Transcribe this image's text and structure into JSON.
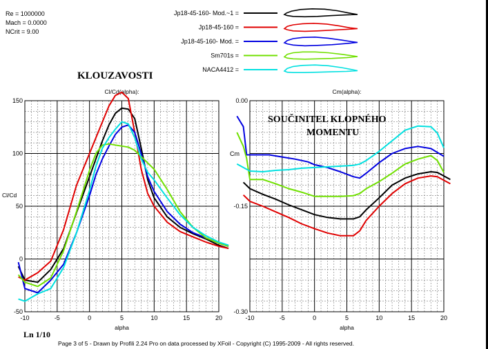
{
  "params": {
    "re": "Re = 1000000",
    "mach": "Mach = 0.0000",
    "ncrit": "NCrit = 9.00"
  },
  "legend": [
    {
      "name": "Jp18-45-160- Mod.~1 =",
      "color": "#000000",
      "profile": [
        [
          0.0,
          0.0
        ],
        [
          0.03,
          -0.04
        ],
        [
          0.1,
          -0.09
        ],
        [
          0.22,
          -0.13
        ],
        [
          0.38,
          -0.15
        ],
        [
          0.55,
          -0.14
        ],
        [
          0.72,
          -0.1
        ],
        [
          0.88,
          -0.04
        ],
        [
          1.0,
          0.0
        ],
        [
          0.85,
          0.01
        ],
        [
          0.65,
          0.03
        ],
        [
          0.45,
          0.05
        ],
        [
          0.28,
          0.06
        ],
        [
          0.12,
          0.05
        ],
        [
          0.04,
          0.03
        ],
        [
          0.0,
          0.0
        ]
      ]
    },
    {
      "name": "Jp18-45-160 =",
      "color": "#e00000",
      "profile": [
        [
          0.0,
          0.0
        ],
        [
          0.04,
          -0.06
        ],
        [
          0.12,
          -0.1
        ],
        [
          0.25,
          -0.13
        ],
        [
          0.4,
          -0.14
        ],
        [
          0.58,
          -0.12
        ],
        [
          0.75,
          -0.07
        ],
        [
          0.9,
          -0.02
        ],
        [
          1.0,
          0.0
        ],
        [
          0.85,
          0.02
        ],
        [
          0.65,
          0.04
        ],
        [
          0.45,
          0.06
        ],
        [
          0.28,
          0.07
        ],
        [
          0.12,
          0.06
        ],
        [
          0.04,
          0.03
        ],
        [
          0.0,
          0.0
        ]
      ]
    },
    {
      "name": "Jp18-45-160- Mod. =",
      "color": "#0000e0",
      "profile": [
        [
          0.0,
          0.0
        ],
        [
          0.04,
          -0.06
        ],
        [
          0.12,
          -0.11
        ],
        [
          0.25,
          -0.14
        ],
        [
          0.42,
          -0.15
        ],
        [
          0.6,
          -0.12
        ],
        [
          0.78,
          -0.07
        ],
        [
          0.92,
          -0.03
        ],
        [
          1.0,
          -0.01
        ],
        [
          0.85,
          0.02
        ],
        [
          0.65,
          0.05
        ],
        [
          0.45,
          0.07
        ],
        [
          0.28,
          0.08
        ],
        [
          0.12,
          0.06
        ],
        [
          0.04,
          0.03
        ],
        [
          0.0,
          0.0
        ]
      ]
    },
    {
      "name": "Sm701s =",
      "color": "#70e000",
      "profile": [
        [
          0.0,
          0.0
        ],
        [
          0.04,
          -0.07
        ],
        [
          0.12,
          -0.11
        ],
        [
          0.25,
          -0.13
        ],
        [
          0.42,
          -0.13
        ],
        [
          0.6,
          -0.11
        ],
        [
          0.78,
          -0.07
        ],
        [
          0.92,
          -0.03
        ],
        [
          1.0,
          -0.01
        ],
        [
          0.85,
          0.02
        ],
        [
          0.65,
          0.04
        ],
        [
          0.45,
          0.05
        ],
        [
          0.28,
          0.06
        ],
        [
          0.12,
          0.05
        ],
        [
          0.04,
          0.03
        ],
        [
          0.0,
          0.0
        ]
      ]
    },
    {
      "name": "NACA4412 =",
      "color": "#00e0e0",
      "profile": [
        [
          0.0,
          0.0
        ],
        [
          0.04,
          -0.07
        ],
        [
          0.12,
          -0.12
        ],
        [
          0.25,
          -0.15
        ],
        [
          0.42,
          -0.16
        ],
        [
          0.6,
          -0.14
        ],
        [
          0.78,
          -0.09
        ],
        [
          0.92,
          -0.04
        ],
        [
          1.0,
          -0.01
        ],
        [
          0.85,
          0.01
        ],
        [
          0.65,
          0.02
        ],
        [
          0.45,
          0.03
        ],
        [
          0.28,
          0.04
        ],
        [
          0.12,
          0.04
        ],
        [
          0.04,
          0.03
        ],
        [
          0.0,
          0.0
        ]
      ]
    }
  ],
  "labels": {
    "klouzavosti": "KLOUZAVOSTI",
    "soucinitel_line1": "SOUČINITEL KLOPNÉHO",
    "soucinitel_line2": "MOMENTU",
    "cm_side": "Cm",
    "page_id": "Ln 1/10",
    "footer": "Page 3 of 5   -   Drawn by Profili 2.24 Pro on data processed by  XFoil - Copyright (C) 1995-2009 - All rights reserved."
  },
  "chart_data": [
    {
      "type": "line",
      "title": "Cl/Cd(alpha):",
      "xlabel": "alpha",
      "ylabel": "Cl/Cd",
      "xlim": [
        -10,
        20
      ],
      "ylim": [
        -50,
        150
      ],
      "xticks": [
        -10,
        -5,
        0,
        5,
        10,
        15,
        20
      ],
      "yticks": [
        -50,
        0,
        50,
        100,
        150
      ],
      "grid": true,
      "series": [
        {
          "name": "Jp18-45-160- Mod.~1",
          "color": "#000000",
          "x": [
            -11,
            -10,
            -8,
            -6,
            -4,
            -2,
            0,
            1,
            2,
            3,
            4,
            5,
            6,
            7,
            8,
            9,
            10,
            12,
            14,
            16,
            18,
            20,
            21.5
          ],
          "y": [
            -7,
            -20,
            -22,
            -10,
            10,
            44,
            78,
            95,
            112,
            127,
            138,
            143,
            142,
            133,
            105,
            75,
            58,
            40,
            30,
            24,
            19,
            13,
            10
          ]
        },
        {
          "name": "Jp18-45-160",
          "color": "#e00000",
          "x": [
            -11,
            -10,
            -8,
            -6,
            -4,
            -2,
            0,
            1,
            2,
            3,
            4,
            5,
            6,
            7,
            8,
            9,
            10,
            12,
            14,
            16,
            18,
            20,
            21.5
          ],
          "y": [
            -17,
            -20,
            -13,
            -2,
            28,
            70,
            100,
            115,
            130,
            145,
            155,
            158,
            152,
            120,
            85,
            62,
            50,
            35,
            26,
            21,
            16,
            12,
            10
          ]
        },
        {
          "name": "Jp18-45-160- Mod.",
          "color": "#0000e0",
          "x": [
            -11,
            -10,
            -8,
            -6,
            -4,
            -2,
            0,
            1,
            2,
            3,
            4,
            5,
            6,
            7,
            8,
            9,
            10,
            12,
            14,
            16,
            18,
            20,
            21.5
          ],
          "y": [
            -3,
            -28,
            -32,
            -20,
            -5,
            25,
            60,
            80,
            95,
            107,
            118,
            125,
            127,
            120,
            100,
            78,
            64,
            45,
            33,
            25,
            20,
            15,
            12
          ]
        },
        {
          "name": "Sm701s",
          "color": "#70e000",
          "x": [
            -11,
            -10,
            -8,
            -6,
            -4,
            -2,
            0,
            1,
            2,
            3,
            4,
            5,
            6,
            7,
            8,
            9,
            10,
            12,
            14,
            16,
            18,
            20,
            21.5
          ],
          "y": [
            -15,
            -22,
            -26,
            -18,
            8,
            45,
            84,
            100,
            108,
            109,
            108,
            107,
            106,
            103,
            97,
            91,
            85,
            66,
            45,
            30,
            20,
            15,
            12
          ]
        },
        {
          "name": "NACA4412",
          "color": "#00e0e0",
          "x": [
            -11,
            -10,
            -8,
            -6,
            -4,
            -2,
            0,
            1,
            2,
            3,
            4,
            5,
            6,
            7,
            8,
            9,
            10,
            12,
            14,
            16,
            18,
            20,
            21.5
          ],
          "y": [
            -38,
            -40,
            -33,
            -28,
            -8,
            25,
            65,
            88,
            105,
            115,
            123,
            130,
            128,
            115,
            95,
            82,
            75,
            58,
            42,
            30,
            22,
            16,
            13
          ]
        }
      ]
    },
    {
      "type": "line",
      "title": "Cm(alpha):",
      "xlabel": "alpha",
      "ylabel": "Cm",
      "xlim": [
        -10,
        20
      ],
      "ylim": [
        -0.3,
        0.0
      ],
      "xticks": [
        -10,
        -5,
        0,
        5,
        10,
        15,
        20
      ],
      "yticks": [
        0.0,
        -0.15,
        -0.3
      ],
      "ytick_labels": [
        "0.00",
        "-0.15",
        "-0.30"
      ],
      "grid": true,
      "series": [
        {
          "name": "Jp18-45-160- Mod.~1",
          "color": "#000000",
          "x": [
            -11,
            -10,
            -8,
            -6,
            -4,
            -2,
            0,
            2,
            4,
            6,
            7,
            8,
            10,
            12,
            14,
            16,
            18,
            19,
            21
          ],
          "y": [
            -0.116,
            -0.125,
            -0.133,
            -0.14,
            -0.148,
            -0.155,
            -0.162,
            -0.166,
            -0.168,
            -0.168,
            -0.165,
            -0.155,
            -0.138,
            -0.12,
            -0.11,
            -0.104,
            -0.101,
            -0.102,
            -0.112
          ]
        },
        {
          "name": "Jp18-45-160",
          "color": "#e00000",
          "x": [
            -11,
            -10,
            -8,
            -6,
            -4,
            -2,
            0,
            2,
            4,
            6,
            7,
            8,
            10,
            12,
            14,
            16,
            18,
            19,
            21
          ],
          "y": [
            -0.134,
            -0.143,
            -0.15,
            -0.158,
            -0.166,
            -0.175,
            -0.182,
            -0.188,
            -0.192,
            -0.192,
            -0.185,
            -0.17,
            -0.15,
            -0.132,
            -0.118,
            -0.11,
            -0.107,
            -0.108,
            -0.118
          ]
        },
        {
          "name": "Jp18-45-160- Mod.",
          "color": "#0000e0",
          "x": [
            -12,
            -11,
            -10.5,
            -9,
            -7,
            -5,
            -3,
            -1,
            0,
            2,
            4,
            6,
            7,
            8,
            10,
            12,
            14,
            16,
            18,
            20
          ],
          "y": [
            -0.022,
            -0.037,
            -0.077,
            -0.077,
            -0.077,
            -0.08,
            -0.083,
            -0.087,
            -0.091,
            -0.095,
            -0.101,
            -0.108,
            -0.11,
            -0.103,
            -0.088,
            -0.075,
            -0.068,
            -0.065,
            -0.068,
            -0.079
          ]
        },
        {
          "name": "Sm701s",
          "color": "#70e000",
          "x": [
            -12,
            -11,
            -10.5,
            -10,
            -8,
            -6,
            -4,
            -2,
            0,
            2,
            4,
            6,
            7,
            8,
            10,
            12,
            14,
            16,
            18,
            19,
            20
          ],
          "y": [
            -0.045,
            -0.065,
            -0.082,
            -0.112,
            -0.112,
            -0.118,
            -0.125,
            -0.13,
            -0.136,
            -0.136,
            -0.136,
            -0.135,
            -0.132,
            -0.125,
            -0.115,
            -0.103,
            -0.09,
            -0.083,
            -0.078,
            -0.085,
            -0.102
          ]
        },
        {
          "name": "NACA4412",
          "color": "#00e0e0",
          "x": [
            -12,
            -10,
            -8,
            -6,
            -4,
            -2,
            0,
            2,
            4,
            6,
            7,
            8,
            10,
            12,
            14,
            16,
            18,
            19,
            20
          ],
          "y": [
            -0.09,
            -0.1,
            -0.101,
            -0.099,
            -0.098,
            -0.096,
            -0.095,
            -0.094,
            -0.093,
            -0.092,
            -0.09,
            -0.085,
            -0.072,
            -0.057,
            -0.042,
            -0.036,
            -0.037,
            -0.046,
            -0.067
          ]
        }
      ]
    }
  ]
}
